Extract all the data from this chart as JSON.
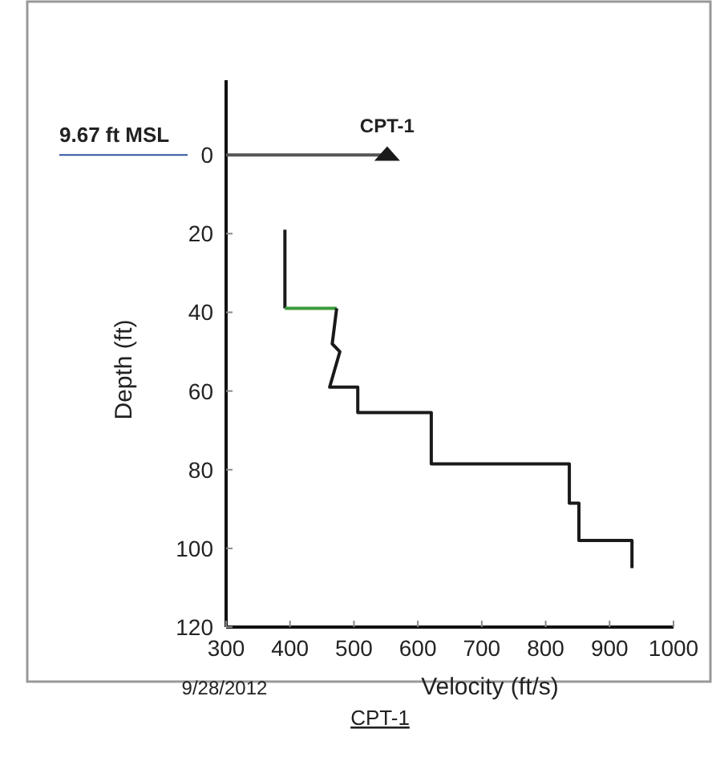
{
  "chart_data": {
    "type": "line",
    "xlabel": "Velocity (ft/s)",
    "ylabel": "Depth (ft)",
    "xlim": [
      300,
      1000
    ],
    "ylim": [
      120,
      -19
    ],
    "xticks": [
      300,
      400,
      500,
      600,
      700,
      800,
      900,
      1000
    ],
    "yticks": [
      0,
      20,
      40,
      60,
      80,
      100,
      120
    ],
    "grid": false,
    "line_style": "solid",
    "series": [
      {
        "color": "#1a1a1a",
        "x": [
          392,
          392
        ],
        "values": [
          19,
          39
        ]
      },
      {
        "color": "#3a9a3a",
        "x": [
          392,
          473
        ],
        "values": [
          39,
          39
        ]
      },
      {
        "color": "#1a1a1a",
        "x": [
          473,
          466,
          478,
          462,
          506,
          506,
          621,
          621,
          837,
          837,
          852,
          852,
          935,
          935
        ],
        "values": [
          39,
          48,
          50,
          59,
          59,
          65.5,
          65.5,
          78.5,
          78.5,
          88.5,
          88.5,
          98,
          98,
          105
        ]
      },
      {
        "color": "#555555",
        "x": [
          300,
          552
        ],
        "values": [
          0,
          0
        ]
      },
      {
        "type": "scatter",
        "name": "CPT-1",
        "color": "#1a1a1a",
        "marker": "triangle",
        "x": [
          552
        ],
        "values": [
          0
        ]
      }
    ],
    "ref_lines": [
      {
        "axis": "y",
        "value": 0,
        "label": "9.67 ft MSL",
        "color": "#3050a0"
      }
    ],
    "annotations": [
      "9/28/2012",
      "CPT-1"
    ]
  }
}
